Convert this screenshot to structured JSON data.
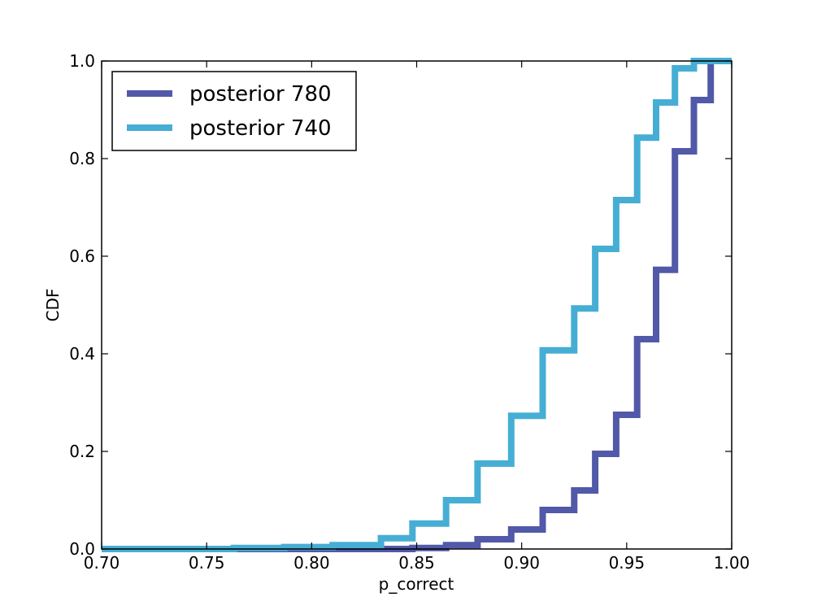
{
  "chart_data": {
    "type": "line",
    "title": "",
    "xlabel": "p_correct",
    "ylabel": "CDF",
    "xlim": [
      0.7,
      1.0
    ],
    "ylim": [
      0.0,
      1.0
    ],
    "x_ticks": [
      "0.70",
      "0.75",
      "0.80",
      "0.85",
      "0.90",
      "0.95",
      "1.00"
    ],
    "y_ticks": [
      "0.0",
      "0.2",
      "0.4",
      "0.6",
      "0.8",
      "1.0"
    ],
    "legend_position": "top-left",
    "grid": false,
    "series": [
      {
        "name": "posterior 780",
        "color": "#5159a8",
        "step": "post",
        "x": [
          0.7,
          0.848,
          0.864,
          0.879,
          0.895,
          0.91,
          0.925,
          0.935,
          0.945,
          0.955,
          0.964,
          0.973,
          0.982,
          0.99,
          1.0
        ],
        "y": [
          0.0,
          0.002,
          0.008,
          0.02,
          0.04,
          0.08,
          0.12,
          0.195,
          0.275,
          0.43,
          0.572,
          0.815,
          0.92,
          1.0,
          1.0
        ]
      },
      {
        "name": "posterior 740",
        "color": "#46aed4",
        "step": "post",
        "x": [
          0.7,
          0.763,
          0.787,
          0.81,
          0.833,
          0.848,
          0.864,
          0.879,
          0.895,
          0.91,
          0.925,
          0.935,
          0.945,
          0.955,
          0.964,
          0.973,
          0.982,
          1.0
        ],
        "y": [
          0.0,
          0.002,
          0.004,
          0.008,
          0.022,
          0.052,
          0.1,
          0.175,
          0.273,
          0.407,
          0.493,
          0.615,
          0.715,
          0.843,
          0.915,
          0.985,
          1.0,
          1.0
        ]
      }
    ]
  }
}
